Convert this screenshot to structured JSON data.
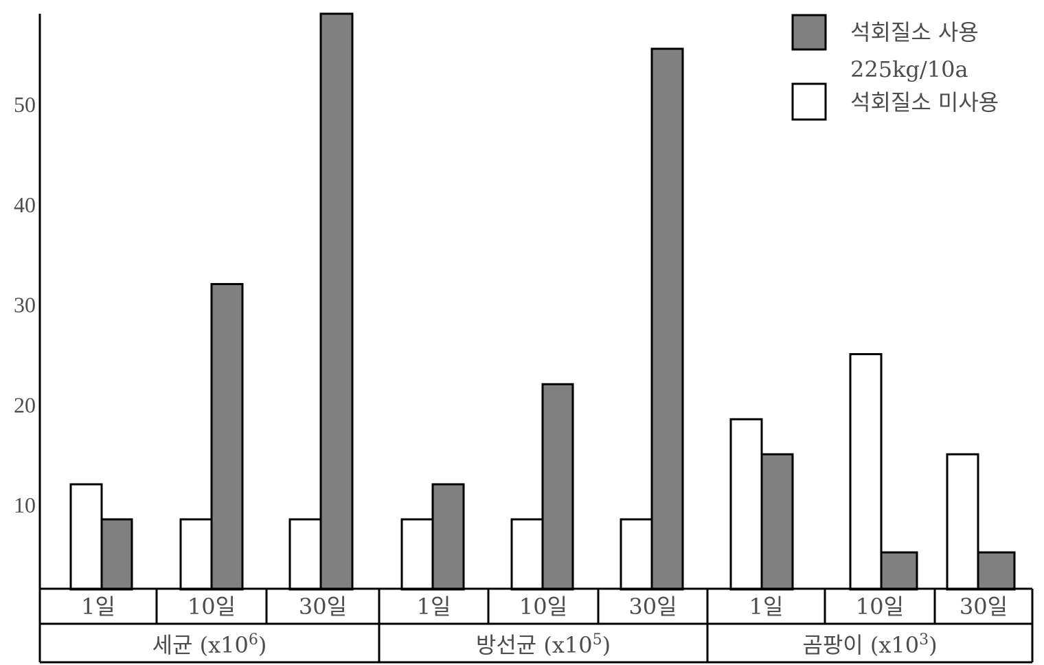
{
  "chart_data": {
    "type": "bar",
    "title": "",
    "xlabel": "",
    "ylabel": "",
    "ylim": [
      1.5,
      59
    ],
    "yticks": [
      10,
      20,
      30,
      40,
      50
    ],
    "grid": false,
    "legend_position": "top-right",
    "groups": [
      {
        "label": "세균",
        "unit": "(x10",
        "exp": "6",
        "unit_close": ")",
        "categories": [
          "1일",
          "10일",
          "30일"
        ],
        "with_lime": [
          8.5,
          32,
          59
        ],
        "without_lime": [
          12,
          8.5,
          8.5
        ]
      },
      {
        "label": "방선균",
        "unit": "(x10",
        "exp": "5",
        "unit_close": ")",
        "categories": [
          "1일",
          "10일",
          "30일"
        ],
        "with_lime": [
          12,
          22,
          55.5
        ],
        "without_lime": [
          8.5,
          8.5,
          8.5
        ]
      },
      {
        "label": "곰팡이",
        "unit": "(x10",
        "exp": "3",
        "unit_close": ")",
        "categories": [
          "1일",
          "10일",
          "30일"
        ],
        "with_lime": [
          15,
          5.2,
          5.2
        ],
        "without_lime": [
          18.5,
          25,
          15
        ]
      }
    ],
    "series": [
      {
        "name": "석회질소 사용",
        "name_line2": "225kg/10a",
        "color": "#808080"
      },
      {
        "name": "석회질소 미사용",
        "color": "#ffffff"
      }
    ]
  }
}
